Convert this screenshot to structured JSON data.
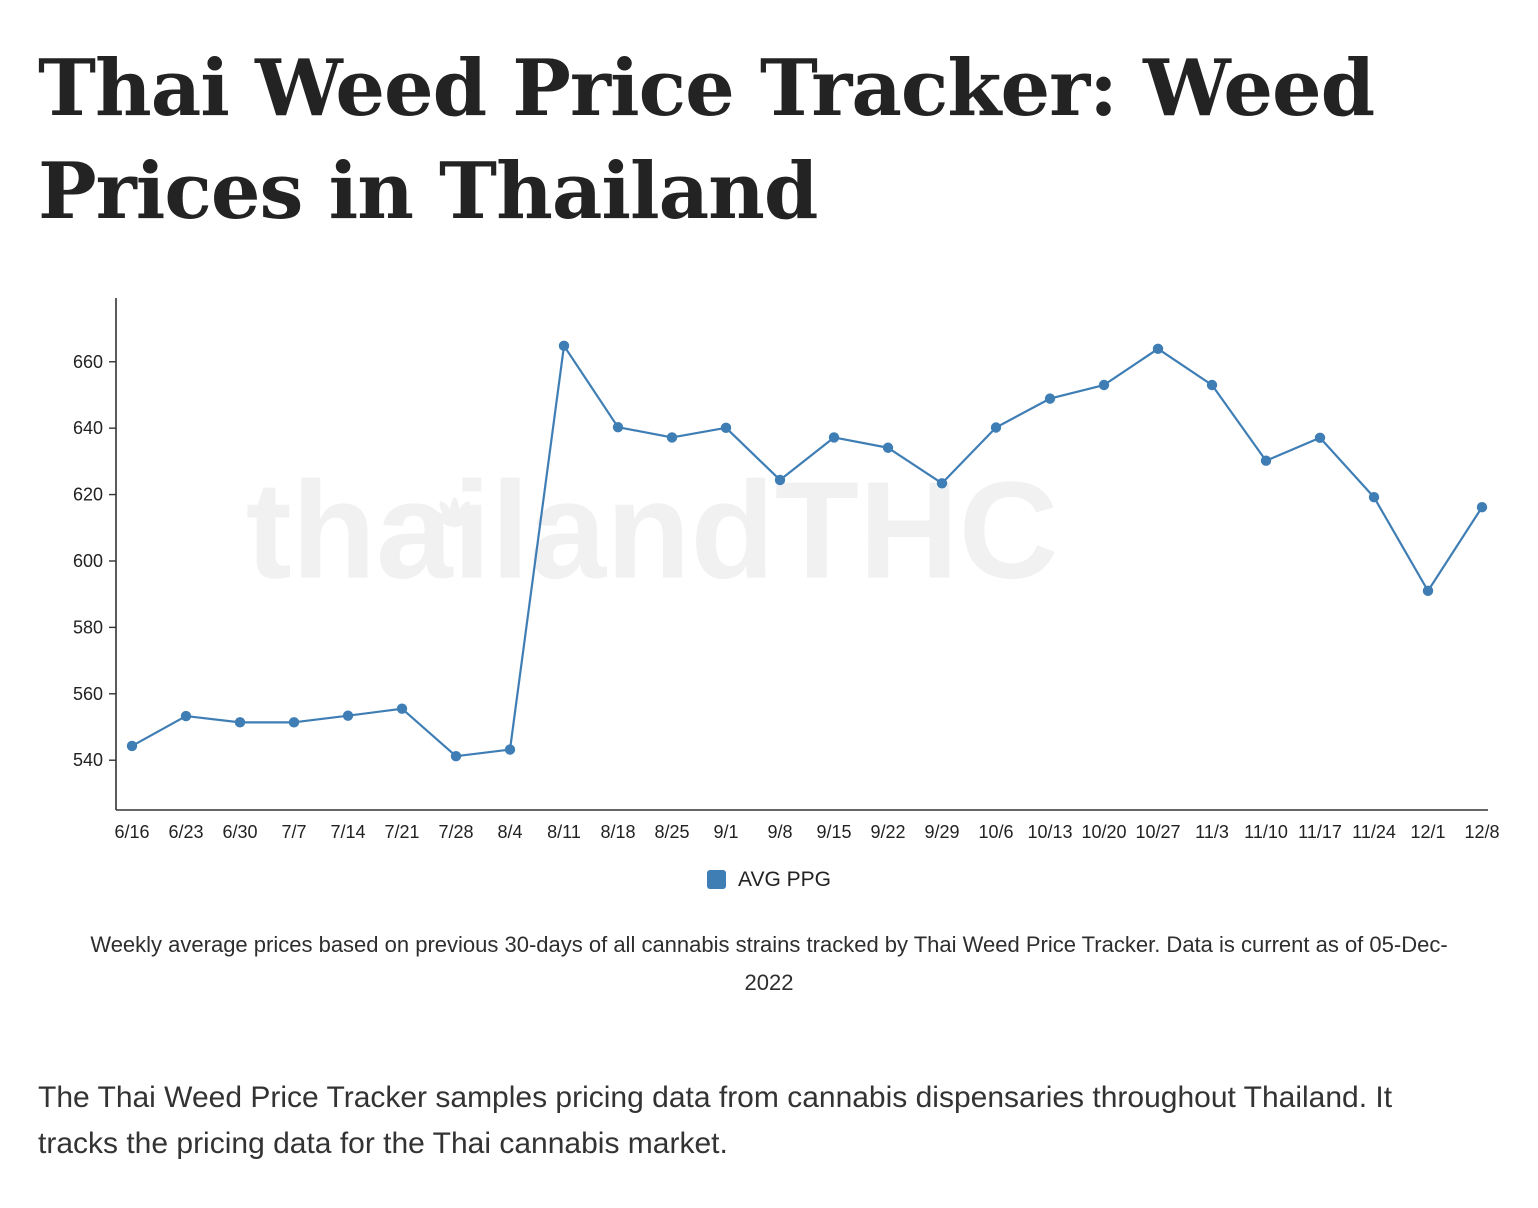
{
  "page": {
    "title": "Thai Weed Price Tracker: Weed Prices in Thailand",
    "caption": "Weekly average prices based on previous 30-days of all cannabis strains tracked by Thai Weed Price Tracker. Data is current as of 05-Dec-2022",
    "body_text": "The Thai Weed Price Tracker samples pricing data from cannabis dispensaries throughout Thailand. It tracks the pricing data for the Thai cannabis market."
  },
  "chart_data": {
    "type": "line",
    "title": "",
    "xlabel": "",
    "ylabel": "",
    "categories": [
      "6/16",
      "6/23",
      "6/30",
      "7/7",
      "7/14",
      "7/21",
      "7/28",
      "8/4",
      "8/11",
      "8/18",
      "8/25",
      "9/1",
      "9/8",
      "9/15",
      "9/22",
      "9/29",
      "10/6",
      "10/13",
      "10/20",
      "10/27",
      "11/3",
      "11/10",
      "11/17",
      "11/24",
      "12/1",
      "12/8"
    ],
    "series": [
      {
        "name": "AVG PPG",
        "values": [
          544.3,
          553.3,
          551.4,
          551.4,
          553.4,
          555.5,
          541.2,
          543.2,
          664.8,
          640.3,
          637.2,
          640.1,
          624.4,
          637.2,
          634.1,
          623.4,
          640.2,
          648.9,
          653.0,
          663.9,
          653.0,
          630.2,
          637.1,
          619.2,
          591.0,
          616.2
        ]
      }
    ],
    "ylim": [
      525,
      678
    ],
    "yticks": [
      540,
      560,
      580,
      600,
      620,
      640,
      660
    ],
    "grid": false,
    "legend_position": "bottom",
    "line_color": "#3f7eb5",
    "axis_color": "#333333",
    "tick_label_color": "#222222",
    "watermark": "thailandTHC",
    "watermark_color": "#f1f1f1"
  }
}
